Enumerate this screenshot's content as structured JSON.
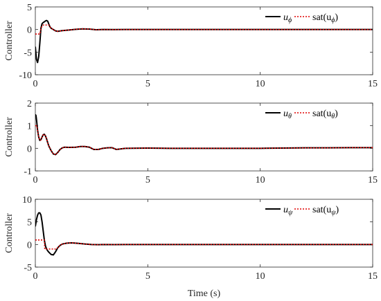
{
  "chart_data": [
    {
      "type": "line",
      "ylabel": "Controller",
      "xlabel": "",
      "xlim": [
        0,
        15
      ],
      "ylim": [
        -10,
        5
      ],
      "xticks": [
        0,
        5,
        10,
        15
      ],
      "yticks": [
        -10,
        -5,
        0,
        5
      ],
      "legend": {
        "placement": "top-right",
        "entries": [
          {
            "main": "u",
            "sub": "ϕ",
            "style": "solid",
            "color": "#000000"
          },
          {
            "main": "sat(u",
            "sub": "ϕ",
            "close": ")",
            "style": "dotted",
            "color": "#e00000"
          }
        ]
      },
      "series": [
        {
          "style": "solid",
          "color": "#000000",
          "x": [
            0,
            0.05,
            0.1,
            0.15,
            0.2,
            0.25,
            0.3,
            0.35,
            0.4,
            0.45,
            0.5,
            0.55,
            0.6,
            0.65,
            0.7,
            0.8,
            0.9,
            1.0,
            1.2,
            1.5,
            1.8,
            2.1,
            2.4,
            2.7,
            3.0,
            3.5,
            4,
            5,
            7,
            10,
            12,
            15
          ],
          "y": [
            -3.8,
            -6.6,
            -7.3,
            -6.0,
            -3.0,
            0.3,
            1.3,
            1.55,
            1.7,
            1.9,
            2.0,
            1.85,
            1.2,
            0.6,
            0.3,
            0.0,
            -0.3,
            -0.4,
            -0.25,
            -0.1,
            0.05,
            0.15,
            0.1,
            -0.05,
            0.0,
            -0.02,
            0.0,
            0.0,
            0.0,
            0.0,
            0.0,
            0.0
          ]
        },
        {
          "style": "dotted",
          "color": "#e00000",
          "x": [
            0,
            0.2,
            0.22,
            0.25,
            0.3,
            0.35,
            0.4,
            0.45,
            0.5,
            0.55,
            0.6,
            0.65,
            0.7,
            0.8,
            0.9,
            1.0,
            1.2,
            1.5,
            1.8,
            2.1,
            2.4,
            2.7,
            3.0,
            3.5,
            4,
            5,
            7,
            10,
            12,
            15
          ],
          "y": [
            -1.0,
            -1.0,
            -0.5,
            0.3,
            0.7,
            1.0,
            1.0,
            1.0,
            1.0,
            1.0,
            1.0,
            0.6,
            0.3,
            0.0,
            -0.3,
            -0.4,
            -0.25,
            -0.1,
            0.05,
            0.15,
            0.1,
            -0.05,
            0.0,
            -0.02,
            0.0,
            0.0,
            0.0,
            0.0,
            0.0,
            0.0
          ]
        }
      ]
    },
    {
      "type": "line",
      "ylabel": "Controller",
      "xlabel": "",
      "xlim": [
        0,
        15
      ],
      "ylim": [
        -1,
        2
      ],
      "xticks": [
        0,
        5,
        10,
        15
      ],
      "yticks": [
        -1,
        0,
        1,
        2
      ],
      "legend": {
        "placement": "top-right",
        "entries": [
          {
            "main": "u",
            "sub": "θ",
            "style": "solid",
            "color": "#000000"
          },
          {
            "main": "sat(u",
            "sub": "θ",
            "close": ")",
            "style": "dotted",
            "color": "#e00000"
          }
        ]
      },
      "series": [
        {
          "style": "solid",
          "color": "#000000",
          "x": [
            0,
            0.03,
            0.06,
            0.1,
            0.15,
            0.2,
            0.25,
            0.3,
            0.35,
            0.4,
            0.45,
            0.5,
            0.55,
            0.6,
            0.7,
            0.8,
            0.9,
            1.0,
            1.1,
            1.2,
            1.3,
            1.5,
            1.8,
            2.0,
            2.2,
            2.4,
            2.6,
            2.8,
            3.0,
            3.2,
            3.4,
            3.6,
            4,
            5,
            6,
            8,
            10,
            12,
            13,
            14,
            15
          ],
          "y": [
            1.5,
            1.45,
            1.2,
            0.8,
            0.5,
            0.35,
            0.38,
            0.5,
            0.6,
            0.62,
            0.55,
            0.42,
            0.25,
            0.1,
            -0.1,
            -0.25,
            -0.28,
            -0.18,
            -0.05,
            0.02,
            0.05,
            0.04,
            0.05,
            0.08,
            0.08,
            0.05,
            -0.05,
            -0.05,
            0.0,
            0.02,
            0.03,
            -0.05,
            0.0,
            0.01,
            0.0,
            0.0,
            0.0,
            0.02,
            0.02,
            0.03,
            0.03
          ]
        },
        {
          "style": "dotted",
          "color": "#e00000",
          "x": [
            0,
            0.03,
            0.06,
            0.1,
            0.15,
            0.2,
            0.25,
            0.3,
            0.35,
            0.4,
            0.45,
            0.5,
            0.55,
            0.6,
            0.7,
            0.8,
            0.9,
            1.0,
            1.1,
            1.2,
            1.3,
            1.5,
            1.8,
            2.0,
            2.2,
            2.4,
            2.6,
            2.8,
            3.0,
            3.2,
            3.4,
            3.6,
            4,
            5,
            6,
            8,
            10,
            12,
            13,
            14,
            15
          ],
          "y": [
            1.0,
            1.0,
            1.0,
            0.8,
            0.5,
            0.35,
            0.38,
            0.5,
            0.6,
            0.62,
            0.55,
            0.42,
            0.25,
            0.1,
            -0.1,
            -0.25,
            -0.28,
            -0.18,
            -0.05,
            0.02,
            0.05,
            0.04,
            0.05,
            0.08,
            0.08,
            0.05,
            -0.05,
            -0.05,
            0.0,
            0.02,
            0.03,
            -0.05,
            0.0,
            0.01,
            0.0,
            0.0,
            0.0,
            0.02,
            0.02,
            0.03,
            0.03
          ]
        }
      ]
    },
    {
      "type": "line",
      "ylabel": "Controller",
      "xlabel": "Time (s)",
      "xlim": [
        0,
        15
      ],
      "ylim": [
        -5,
        10
      ],
      "xticks": [
        0,
        5,
        10,
        15
      ],
      "yticks": [
        -5,
        0,
        5,
        10
      ],
      "legend": {
        "placement": "top-right",
        "entries": [
          {
            "main": "u",
            "sub": "ψ",
            "style": "solid",
            "color": "#000000"
          },
          {
            "main": "sat(u",
            "sub": "ψ",
            "close": ")",
            "style": "dotted",
            "color": "#e00000"
          }
        ]
      },
      "series": [
        {
          "style": "solid",
          "color": "#000000",
          "x": [
            0,
            0.05,
            0.1,
            0.15,
            0.2,
            0.25,
            0.3,
            0.35,
            0.4,
            0.45,
            0.5,
            0.55,
            0.6,
            0.7,
            0.8,
            0.9,
            1.0,
            1.1,
            1.2,
            1.4,
            1.6,
            1.8,
            2.0,
            2.2,
            2.5,
            2.8,
            3.0,
            3.5,
            4,
            5,
            7,
            10,
            12,
            15
          ],
          "y": [
            4.0,
            5.5,
            6.5,
            7.0,
            7.0,
            6.5,
            5.0,
            3.0,
            1.0,
            -0.3,
            -1.0,
            -1.4,
            -1.7,
            -2.2,
            -2.3,
            -1.6,
            -0.7,
            -0.2,
            0.1,
            0.3,
            0.35,
            0.3,
            0.2,
            0.1,
            0.0,
            -0.05,
            0.0,
            -0.02,
            0.0,
            0.0,
            0.0,
            0.0,
            0.0,
            0.0
          ]
        },
        {
          "style": "dotted",
          "color": "#e00000",
          "x": [
            0,
            0.35,
            0.4,
            0.42,
            0.5,
            0.6,
            0.7,
            0.8,
            0.9,
            1.0,
            1.1,
            1.2,
            1.4,
            1.6,
            1.8,
            2.0,
            2.2,
            2.5,
            2.8,
            3.0,
            3.5,
            4,
            5,
            7,
            10,
            12,
            15
          ],
          "y": [
            1.0,
            1.0,
            1.0,
            -1.0,
            -1.0,
            -1.0,
            -1.0,
            -1.0,
            -1.0,
            -0.7,
            -0.2,
            0.1,
            0.3,
            0.35,
            0.3,
            0.2,
            0.1,
            0.0,
            -0.05,
            0.0,
            -0.02,
            0.0,
            0.0,
            0.0,
            0.0,
            0.0,
            0.0
          ]
        }
      ]
    }
  ]
}
